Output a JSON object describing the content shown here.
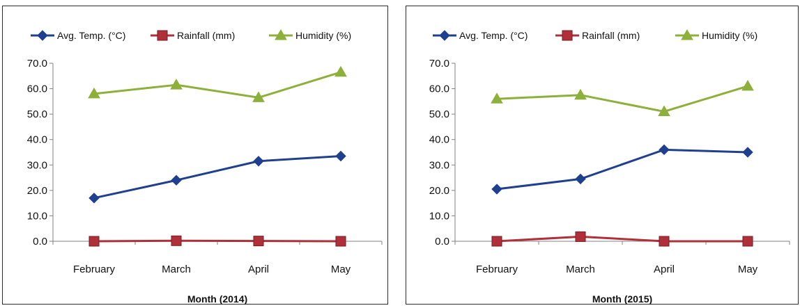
{
  "chart_data": [
    {
      "type": "line",
      "title": "",
      "xlabel": "Month (2014)",
      "ylabel": "",
      "categories": [
        "February",
        "March",
        "April",
        "May"
      ],
      "ylim": [
        0,
        70
      ],
      "yticks": [
        "0.0",
        "10.0",
        "20.0",
        "30.0",
        "40.0",
        "50.0",
        "60.0",
        "70.0"
      ],
      "grid": false,
      "legend": "top",
      "series": [
        {
          "name": "Avg. Temp. (°C)",
          "color": "#1f3f8f",
          "marker": "diamond",
          "values": [
            17.0,
            24.0,
            31.5,
            33.5
          ]
        },
        {
          "name": "Rainfall (mm)",
          "color": "#b0303a",
          "marker": "square",
          "values": [
            0.0,
            0.2,
            0.1,
            0.0
          ]
        },
        {
          "name": "Humidity (%)",
          "color": "#8db03a",
          "marker": "triangle",
          "values": [
            58.0,
            61.5,
            56.5,
            66.5
          ]
        }
      ]
    },
    {
      "type": "line",
      "title": "",
      "xlabel": "Month (2015)",
      "ylabel": "",
      "categories": [
        "February",
        "March",
        "April",
        "May"
      ],
      "ylim": [
        0,
        70
      ],
      "yticks": [
        "0.0",
        "10.0",
        "20.0",
        "30.0",
        "40.0",
        "50.0",
        "60.0",
        "70.0"
      ],
      "grid": false,
      "legend": "top",
      "series": [
        {
          "name": "Avg. Temp. (°C)",
          "color": "#1f3f8f",
          "marker": "diamond",
          "values": [
            20.5,
            24.5,
            36.0,
            35.0
          ]
        },
        {
          "name": "Rainfall (mm)",
          "color": "#b0303a",
          "marker": "square",
          "values": [
            0.0,
            1.8,
            0.0,
            0.0
          ]
        },
        {
          "name": "Humidity (%)",
          "color": "#8db03a",
          "marker": "triangle",
          "values": [
            56.0,
            57.5,
            51.0,
            61.0
          ]
        }
      ]
    }
  ]
}
